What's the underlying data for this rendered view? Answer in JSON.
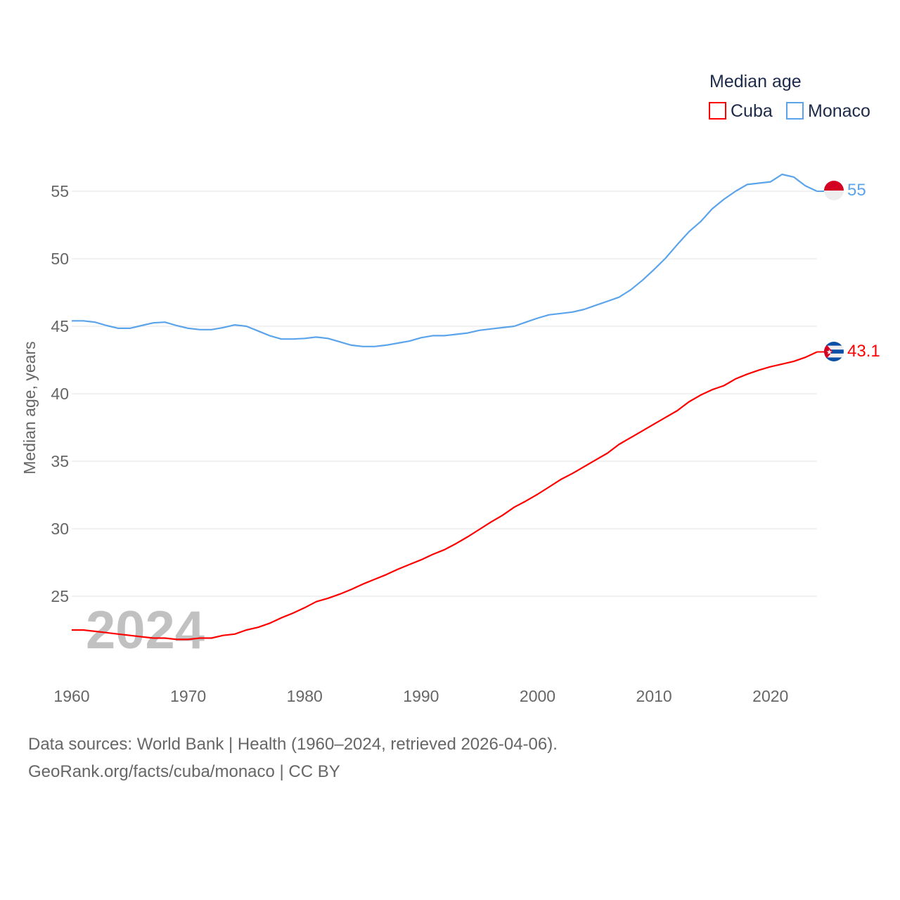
{
  "chart_data": {
    "type": "line",
    "title": "",
    "xlabel": "",
    "ylabel": "Median age, years",
    "legend_title": "Median age",
    "legend_position": "top-right",
    "year_watermark": "2024",
    "xlim": [
      1960,
      2024
    ],
    "ylim": [
      20,
      57
    ],
    "xticks": [
      1960,
      1970,
      1980,
      1990,
      2000,
      2010,
      2020
    ],
    "yticks": [
      25,
      30,
      35,
      40,
      45,
      50,
      55
    ],
    "grid": true,
    "x": [
      1960,
      1961,
      1962,
      1963,
      1964,
      1965,
      1966,
      1967,
      1968,
      1969,
      1970,
      1971,
      1972,
      1973,
      1974,
      1975,
      1976,
      1977,
      1978,
      1979,
      1980,
      1981,
      1982,
      1983,
      1984,
      1985,
      1986,
      1987,
      1988,
      1989,
      1990,
      1991,
      1992,
      1993,
      1994,
      1995,
      1996,
      1997,
      1998,
      1999,
      2000,
      2001,
      2002,
      2003,
      2004,
      2005,
      2006,
      2007,
      2008,
      2009,
      2010,
      2011,
      2012,
      2013,
      2014,
      2015,
      2016,
      2017,
      2018,
      2019,
      2020,
      2021,
      2022,
      2023,
      2024
    ],
    "series": [
      {
        "name": "Cuba",
        "color": "#ff0000",
        "end_label": "43.1",
        "flag": "cuba-flag",
        "values": [
          22.5,
          22.5,
          22.4,
          22.3,
          22.2,
          22.1,
          22.0,
          21.9,
          21.9,
          21.8,
          21.8,
          21.9,
          21.9,
          22.1,
          22.2,
          22.5,
          22.7,
          23.0,
          23.4,
          23.75,
          24.15,
          24.6,
          24.85,
          25.15,
          25.5,
          25.9,
          26.25,
          26.6,
          27.0,
          27.35,
          27.7,
          28.1,
          28.45,
          28.9,
          29.4,
          29.95,
          30.5,
          31.0,
          31.6,
          32.05,
          32.55,
          33.1,
          33.65,
          34.1,
          34.6,
          35.1,
          35.6,
          36.25,
          36.75,
          37.25,
          37.75,
          38.25,
          38.75,
          39.4,
          39.9,
          40.3,
          40.6,
          41.1,
          41.45,
          41.75,
          42.0,
          42.2,
          42.4,
          42.7,
          43.1
        ]
      },
      {
        "name": "Monaco",
        "color": "#5ba4ec",
        "end_label": "55",
        "flag": "monaco-flag",
        "values": [
          45.4,
          45.4,
          45.3,
          45.05,
          44.85,
          44.85,
          45.05,
          45.25,
          45.3,
          45.05,
          44.85,
          44.75,
          44.75,
          44.9,
          45.1,
          45.0,
          44.65,
          44.3,
          44.05,
          44.05,
          44.1,
          44.2,
          44.1,
          43.85,
          43.6,
          43.5,
          43.5,
          43.6,
          43.75,
          43.9,
          44.15,
          44.3,
          44.3,
          44.4,
          44.5,
          44.7,
          44.8,
          44.9,
          45.0,
          45.3,
          45.6,
          45.85,
          45.95,
          46.05,
          46.25,
          46.55,
          46.85,
          47.15,
          47.7,
          48.4,
          49.2,
          50.05,
          51.05,
          52.0,
          52.75,
          53.7,
          54.4,
          55.0,
          55.5,
          55.6,
          55.7,
          56.25,
          56.05,
          55.4,
          55.0
        ]
      }
    ]
  },
  "footer": {
    "line1": "Data sources: World Bank | Health (1960–2024, retrieved 2026-04-06).",
    "line2": "GeoRank.org/facts/cuba/monaco | CC BY"
  }
}
